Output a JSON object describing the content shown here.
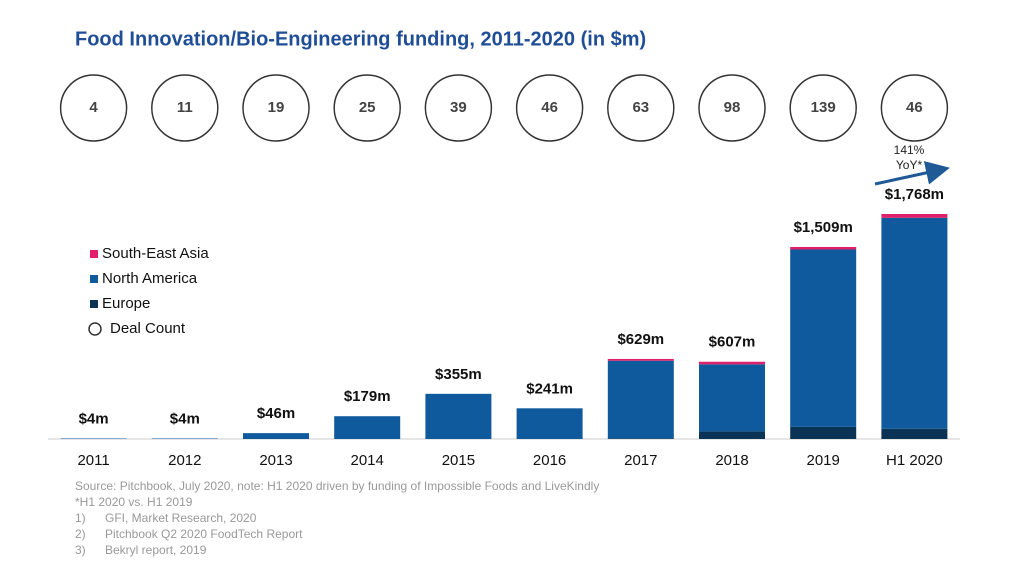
{
  "chart_data": {
    "type": "stacked_bar",
    "title": "Food Innovation/Bio-Engineering funding, 2011-2020 (in $m)",
    "categories": [
      "2011",
      "2012",
      "2013",
      "2014",
      "2015",
      "2016",
      "2017",
      "2018",
      "2019",
      "H1 2020"
    ],
    "series": [
      {
        "name": "Europe",
        "color": "#0b3355",
        "values": [
          0,
          0,
          0,
          0,
          0,
          0,
          5,
          60,
          95,
          80
        ]
      },
      {
        "name": "North America",
        "color": "#0e5a9c",
        "values": [
          4,
          4,
          46,
          179,
          355,
          241,
          610,
          527,
          1394,
          1658
        ]
      },
      {
        "name": "South-East Asia",
        "color": "#e0206a",
        "values": [
          0,
          0,
          0,
          0,
          0,
          0,
          14,
          20,
          20,
          30
        ]
      }
    ],
    "totals": {
      "values": [
        4,
        4,
        46,
        179,
        355,
        241,
        629,
        607,
        1509,
        1768
      ],
      "value_labels": [
        "$4m",
        "$4m",
        "$46m",
        "$179m",
        "$355m",
        "$241m",
        "$629m",
        "$607m",
        "$1,509m",
        "$1,768m"
      ]
    },
    "deal_counts": {
      "name": "Deal Count",
      "values": [
        4,
        11,
        19,
        25,
        39,
        46,
        63,
        98,
        139,
        46
      ]
    },
    "annotation": [
      "141%",
      "YoY*"
    ],
    "source": "Source: Pitchbook, July 2020, note: H1 2020 driven by funding of  Impossible Foods and LiveKindly",
    "footnote": "*H1 2020 vs. H1 2019",
    "references": [
      {
        "number": "1)",
        "text": "GFI, Market Research, 2020"
      },
      {
        "number": "2)",
        "text": "Pitchbook Q2 2020 FoodTech Report"
      },
      {
        "number": "3)",
        "text": "Bekryl report, 2019"
      }
    ]
  }
}
